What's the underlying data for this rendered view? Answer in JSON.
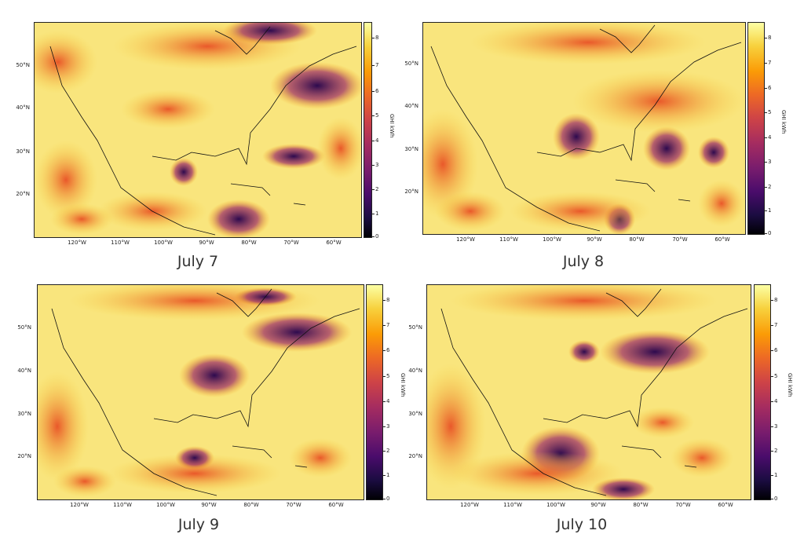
{
  "panels": [
    {
      "caption": "July 7"
    },
    {
      "caption": "July 8"
    },
    {
      "caption": "July 9"
    },
    {
      "caption": "July 10"
    }
  ],
  "colorbar": {
    "label": "GHI kWh",
    "ticks": [
      "8",
      "7",
      "6",
      "5",
      "4",
      "3",
      "2",
      "1",
      "0"
    ],
    "colormap": [
      "#000004",
      "#1b0c41",
      "#4a0c6b",
      "#781c6d",
      "#a52c60",
      "#cf4446",
      "#ed6925",
      "#fb9b06",
      "#f7d13d",
      "#fcffa4"
    ]
  },
  "lat_ticks": [
    "50°N",
    "40°N",
    "30°N",
    "20°N"
  ],
  "lon_ticks": [
    "120°W",
    "110°W",
    "100°W",
    "90°W",
    "80°W",
    "70°W",
    "60°W"
  ]
}
